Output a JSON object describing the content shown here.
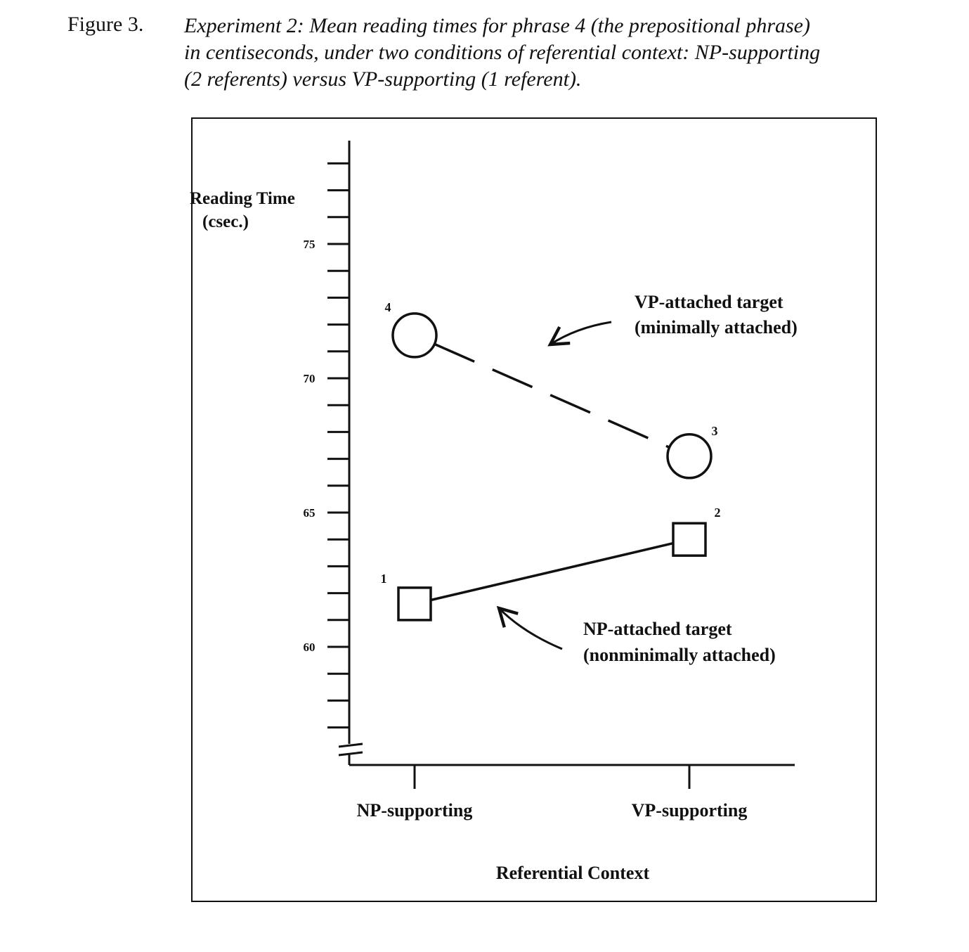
{
  "figure": {
    "label": "Figure 3.",
    "caption_lines": [
      "Experiment 2: Mean reading times for phrase 4 (the prepositional phrase)",
      "in centiseconds, under two conditions of referential context: NP-supporting",
      "(2 referents) versus VP-supporting (1 referent)."
    ]
  },
  "chart_data": {
    "type": "line",
    "ylabel_lines": [
      "Reading Time",
      "(csec.)"
    ],
    "xlabel": "Referential Context",
    "categories": [
      "NP-supporting",
      "VP-supporting"
    ],
    "yticks": [
      60,
      65,
      70,
      75
    ],
    "ytick_labels": [
      "60",
      "65",
      "70",
      "75"
    ],
    "ylim": [
      56,
      79
    ],
    "grid": false,
    "series": [
      {
        "name": "VP-attached target (minimally attached)",
        "label_lines": [
          "VP-attached target",
          "(minimally attached)"
        ],
        "marker": "circle",
        "line_style": "dashed",
        "values": [
          71.6,
          67.1
        ],
        "point_labels": [
          "4",
          "3"
        ]
      },
      {
        "name": "NP-attached target (nonminimally attached)",
        "label_lines": [
          "NP-attached target",
          "(nonminimally attached)"
        ],
        "marker": "square",
        "line_style": "solid",
        "values": [
          61.6,
          64.0
        ],
        "point_labels": [
          "1",
          "2"
        ]
      }
    ]
  }
}
